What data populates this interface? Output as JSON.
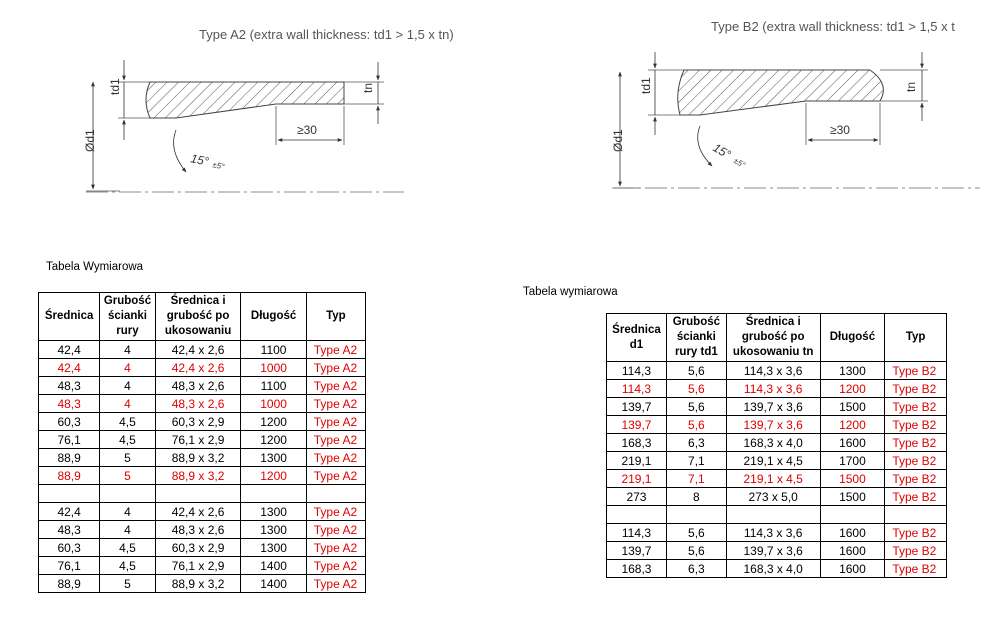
{
  "figure_a": {
    "title": "Type A2 (extra wall thickness: td1 > 1,5 x tn)",
    "label_td1": "td1",
    "label_tn": "tn",
    "label_od": "Ød1",
    "label_len": "≥30",
    "label_angle": "15°",
    "label_tol": "±5°"
  },
  "figure_b": {
    "title": "Type B2 (extra wall thickness: td1 > 1,5 x t",
    "label_td1": "td1",
    "label_tn": "tn",
    "label_od": "Ød1",
    "label_len": "≥30",
    "label_angle": "15°",
    "label_tol": "±5°"
  },
  "table_a": {
    "caption": "Tabela Wymiarowa",
    "headers": [
      "Średnica",
      "Grubość ścianki rury",
      "Średnica i grubość po ukosowaniu",
      "Długość",
      "Typ"
    ],
    "header_lines": [
      [
        "Średnica"
      ],
      [
        "Grubość",
        "ścianki",
        "rury"
      ],
      [
        "Średnica i",
        "grubość po",
        "ukosowaniu"
      ],
      [
        "Długość"
      ],
      [
        "Typ"
      ]
    ],
    "rows": [
      {
        "cells": [
          "42,4",
          "4",
          "42,4 x 2,6",
          "1100",
          "Type A2"
        ],
        "red": false
      },
      {
        "cells": [
          "42,4",
          "4",
          "42,4 x 2,6",
          "1000",
          "Type A2"
        ],
        "red": true
      },
      {
        "cells": [
          "48,3",
          "4",
          "48,3 x 2,6",
          "1100",
          "Type A2"
        ],
        "red": false
      },
      {
        "cells": [
          "48,3",
          "4",
          "48,3 x 2,6",
          "1000",
          "Type A2"
        ],
        "red": true
      },
      {
        "cells": [
          "60,3",
          "4,5",
          "60,3 x 2,9",
          "1200",
          "Type A2"
        ],
        "red": false
      },
      {
        "cells": [
          "76,1",
          "4,5",
          "76,1 x 2,9",
          "1200",
          "Type A2"
        ],
        "red": false
      },
      {
        "cells": [
          "88,9",
          "5",
          "88,9 x 3,2",
          "1300",
          "Type A2"
        ],
        "red": false
      },
      {
        "cells": [
          "88,9",
          "5",
          "88,9 x 3,2",
          "1200",
          "Type A2"
        ],
        "red": true
      },
      {
        "cells": [
          "",
          "",
          "",
          "",
          ""
        ],
        "red": false,
        "gap": true
      },
      {
        "cells": [
          "42,4",
          "4",
          "42,4 x 2,6",
          "1300",
          "Type A2"
        ],
        "red": false
      },
      {
        "cells": [
          "48,3",
          "4",
          "48,3 x 2,6",
          "1300",
          "Type A2"
        ],
        "red": false
      },
      {
        "cells": [
          "60,3",
          "4,5",
          "60,3 x 2,9",
          "1300",
          "Type A2"
        ],
        "red": false
      },
      {
        "cells": [
          "76,1",
          "4,5",
          "76,1 x 2,9",
          "1400",
          "Type A2"
        ],
        "red": false
      },
      {
        "cells": [
          "88,9",
          "5",
          "88,9 x 3,2",
          "1400",
          "Type A2"
        ],
        "red": false
      }
    ]
  },
  "table_b": {
    "caption": "Tabela wymiarowa",
    "headers": [
      "Średnica d1",
      "Grubość ścianki rury td1",
      "Średnica i grubość po ukosowaniu tn",
      "Długość",
      "Typ"
    ],
    "header_lines": [
      [
        "Średnica",
        "d1"
      ],
      [
        "Grubość",
        "ścianki",
        "rury td1"
      ],
      [
        "Średnica i",
        "grubość po",
        "ukosowaniu tn"
      ],
      [
        "Długość"
      ],
      [
        "Typ"
      ]
    ],
    "rows": [
      {
        "cells": [
          "114,3",
          "5,6",
          "114,3 x 3,6",
          "1300",
          "Type B2"
        ],
        "red": false
      },
      {
        "cells": [
          "114,3",
          "5,6",
          "114,3 x 3,6",
          "1200",
          "Type B2"
        ],
        "red": true
      },
      {
        "cells": [
          "139,7",
          "5,6",
          "139,7 x 3,6",
          "1500",
          "Type B2"
        ],
        "red": false
      },
      {
        "cells": [
          "139,7",
          "5,6",
          "139,7 x 3,6",
          "1200",
          "Type B2"
        ],
        "red": true
      },
      {
        "cells": [
          "168,3",
          "6,3",
          "168,3 x 4,0",
          "1600",
          "Type B2"
        ],
        "red": false
      },
      {
        "cells": [
          "219,1",
          "7,1",
          "219,1 x 4,5",
          "1700",
          "Type B2"
        ],
        "red": false
      },
      {
        "cells": [
          "219,1",
          "7,1",
          "219,1 x 4,5",
          "1500",
          "Type B2"
        ],
        "red": true
      },
      {
        "cells": [
          "273",
          "8",
          "273 x 5,0",
          "1500",
          "Type B2"
        ],
        "red": false
      },
      {
        "cells": [
          "",
          "",
          "",
          "",
          ""
        ],
        "red": false,
        "gap": true
      },
      {
        "cells": [
          "114,3",
          "5,6",
          "114,3 x 3,6",
          "1600",
          "Type B2"
        ],
        "red": false
      },
      {
        "cells": [
          "139,7",
          "5,6",
          "139,7 x 3,6",
          "1600",
          "Type B2"
        ],
        "red": false
      },
      {
        "cells": [
          "168,3",
          "6,3",
          "168,3 x 4,0",
          "1600",
          "Type B2"
        ],
        "red": false
      }
    ]
  }
}
